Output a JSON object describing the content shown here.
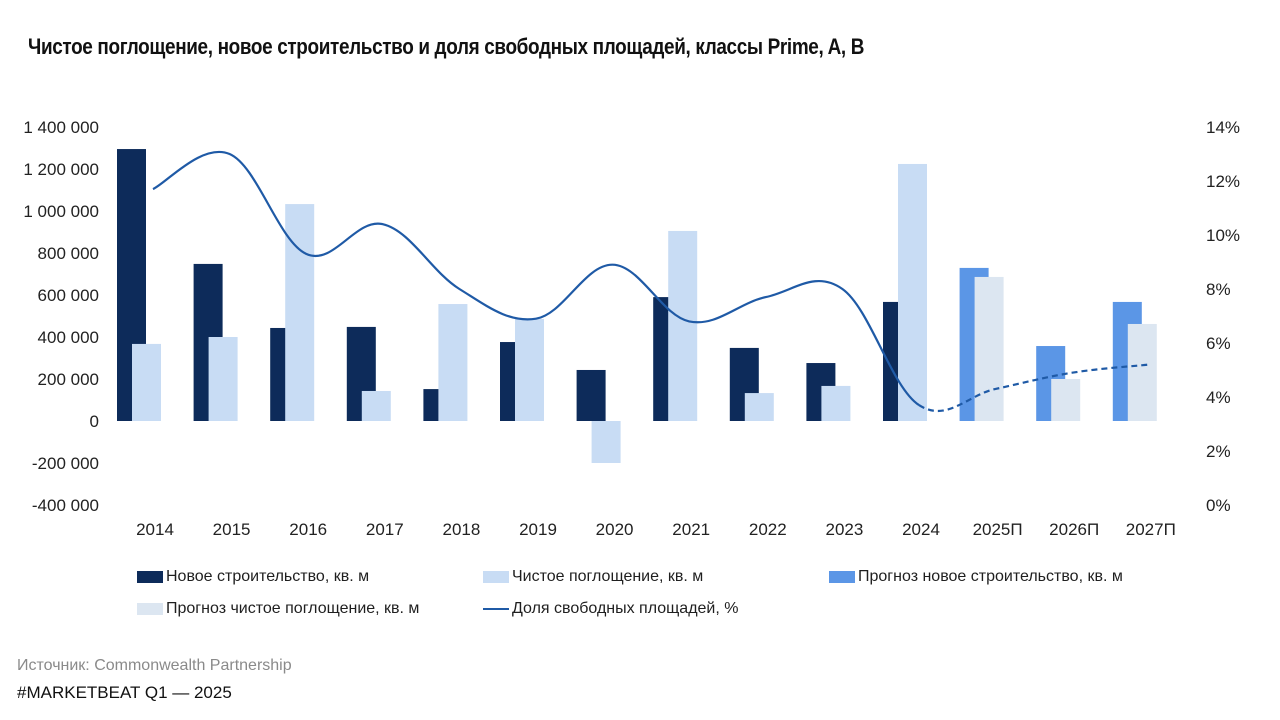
{
  "title": "Чистое поглощение, новое строительство и доля свободных площадей, классы Prime, A, B",
  "source": "Источник: Commonwealth Partnership",
  "footer": "#MARKETBEAT Q1  —  2025",
  "colors": {
    "new_construction": "#0d2b5a",
    "net_absorption": "#c8dcf4",
    "forecast_new_construction": "#5b96e6",
    "forecast_net_absorption": "#dce6f1",
    "vacancy_line": "#1f5aa6"
  },
  "legend": [
    {
      "label": "Новое строительство, кв. м",
      "type": "box",
      "color": "#0d2b5a"
    },
    {
      "label": "Чистое поглощение, кв. м",
      "type": "box",
      "color": "#c8dcf4"
    },
    {
      "label": "Прогноз новое строительство, кв. м",
      "type": "box",
      "color": "#5b96e6"
    },
    {
      "label": "Прогноз чистое поглощение, кв. м",
      "type": "box",
      "color": "#dce6f1"
    },
    {
      "label": "Доля свободных площадей, %",
      "type": "line",
      "color": "#1f5aa6"
    }
  ],
  "chart_data": {
    "type": "bar",
    "title": "Чистое поглощение, новое строительство и доля свободных площадей, классы Prime, A, B",
    "categories": [
      "2014",
      "2015",
      "2016",
      "2017",
      "2018",
      "2019",
      "2020",
      "2021",
      "2022",
      "2023",
      "2024",
      "2025П",
      "2026П",
      "2027П"
    ],
    "forecast_from_index": 11,
    "left_axis": {
      "range": [
        -400000,
        1400000
      ],
      "ticks": [
        1400000,
        1200000,
        1000000,
        800000,
        600000,
        400000,
        200000,
        0,
        -200000,
        -400000
      ],
      "tick_labels": [
        "1 400 000",
        "1 200 000",
        "1 000 000",
        "800 000",
        "600 000",
        "400 000",
        "200 000",
        "0",
        "-200 000",
        "-400 000"
      ]
    },
    "right_axis": {
      "range": [
        0,
        14
      ],
      "ticks": [
        14,
        12,
        10,
        8,
        6,
        4,
        2,
        0
      ],
      "tick_labels": [
        "14%",
        "12%",
        "10%",
        "8%",
        "6%",
        "4%",
        "2%",
        "0%"
      ]
    },
    "grid": false,
    "legend_position": "bottom",
    "series": [
      {
        "name": "Новое строительство, кв. м",
        "kind": "bar",
        "axis": "left",
        "values": [
          1295000,
          748000,
          443000,
          448000,
          152000,
          376000,
          243000,
          590000,
          348000,
          276000,
          567000,
          null,
          null,
          null
        ]
      },
      {
        "name": "Чистое поглощение, кв. м",
        "kind": "bar",
        "axis": "left",
        "values": [
          367000,
          400000,
          1033000,
          143000,
          557000,
          486000,
          -200000,
          905000,
          133000,
          167000,
          1224000,
          null,
          null,
          null
        ]
      },
      {
        "name": "Прогноз новое строительство, кв. м",
        "kind": "bar",
        "axis": "left",
        "values": [
          null,
          null,
          null,
          null,
          null,
          null,
          null,
          null,
          null,
          null,
          null,
          729000,
          357000,
          567000
        ]
      },
      {
        "name": "Прогноз чистое поглощение, кв. м",
        "kind": "bar",
        "axis": "left",
        "values": [
          null,
          null,
          null,
          null,
          null,
          null,
          null,
          null,
          null,
          null,
          null,
          686000,
          200000,
          462000
        ]
      },
      {
        "name": "Доля свободных площадей, %",
        "kind": "line",
        "axis": "right",
        "values": [
          11.7,
          13.0,
          9.3,
          10.4,
          8.0,
          6.9,
          8.9,
          6.8,
          7.7,
          8.0,
          3.7,
          4.3,
          4.9,
          5.2
        ],
        "dashed_from_index": 10
      }
    ]
  }
}
